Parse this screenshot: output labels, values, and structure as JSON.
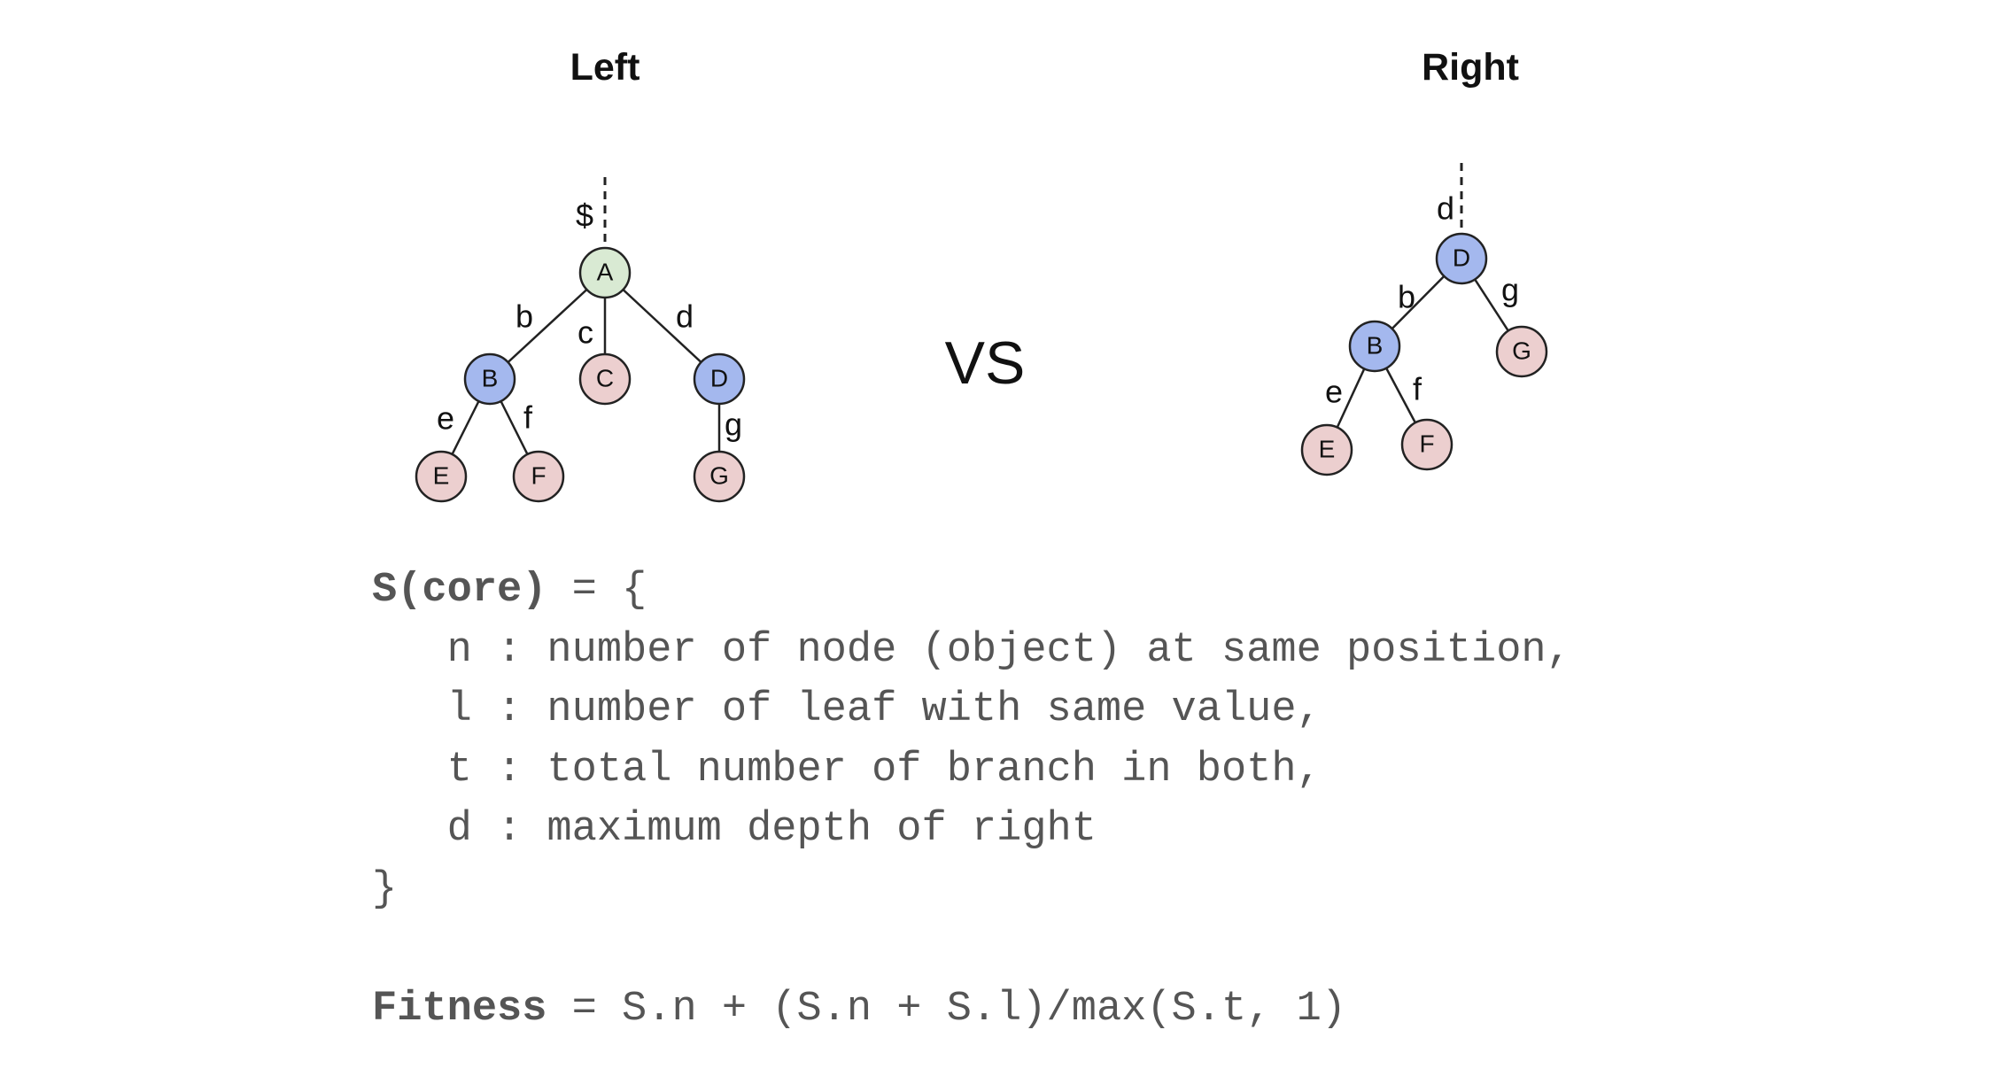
{
  "titles": {
    "left": "Left",
    "right": "Right"
  },
  "vs_label": "VS",
  "colors": {
    "root": "#d9ead3",
    "internal": "#a4b8ee",
    "leaf": "#eccfcf",
    "stroke": "#222222"
  },
  "left_tree": {
    "root_edge_label": "$",
    "nodes": [
      {
        "id": "A",
        "label": "A",
        "kind": "root"
      },
      {
        "id": "B",
        "label": "B",
        "kind": "internal"
      },
      {
        "id": "C",
        "label": "C",
        "kind": "leaf"
      },
      {
        "id": "D",
        "label": "D",
        "kind": "internal"
      },
      {
        "id": "E",
        "label": "E",
        "kind": "leaf"
      },
      {
        "id": "F",
        "label": "F",
        "kind": "leaf"
      },
      {
        "id": "G",
        "label": "G",
        "kind": "leaf"
      }
    ],
    "edges": [
      {
        "from": "A",
        "to": "B",
        "label": "b"
      },
      {
        "from": "A",
        "to": "C",
        "label": "c"
      },
      {
        "from": "A",
        "to": "D",
        "label": "d"
      },
      {
        "from": "B",
        "to": "E",
        "label": "e"
      },
      {
        "from": "B",
        "to": "F",
        "label": "f"
      },
      {
        "from": "D",
        "to": "G",
        "label": "g"
      }
    ]
  },
  "right_tree": {
    "root_edge_label": "d",
    "nodes": [
      {
        "id": "D",
        "label": "D",
        "kind": "internal"
      },
      {
        "id": "B",
        "label": "B",
        "kind": "internal"
      },
      {
        "id": "G",
        "label": "G",
        "kind": "leaf"
      },
      {
        "id": "E",
        "label": "E",
        "kind": "leaf"
      },
      {
        "id": "F",
        "label": "F",
        "kind": "leaf"
      }
    ],
    "edges": [
      {
        "from": "D",
        "to": "B",
        "label": "b"
      },
      {
        "from": "D",
        "to": "G",
        "label": "g"
      },
      {
        "from": "B",
        "to": "E",
        "label": "e"
      },
      {
        "from": "B",
        "to": "F",
        "label": "f"
      }
    ]
  },
  "score": {
    "name": "S(core)",
    "open": " = {",
    "fields": [
      "   n : number of node (object) at same position,",
      "   l : number of leaf with same value,",
      "   t : total number of branch in both,",
      "   d : maximum depth of right"
    ],
    "close": "}"
  },
  "fitness": {
    "name": "Fitness",
    "formula": " = S.n + (S.n + S.l)/max(S.t, 1)"
  }
}
